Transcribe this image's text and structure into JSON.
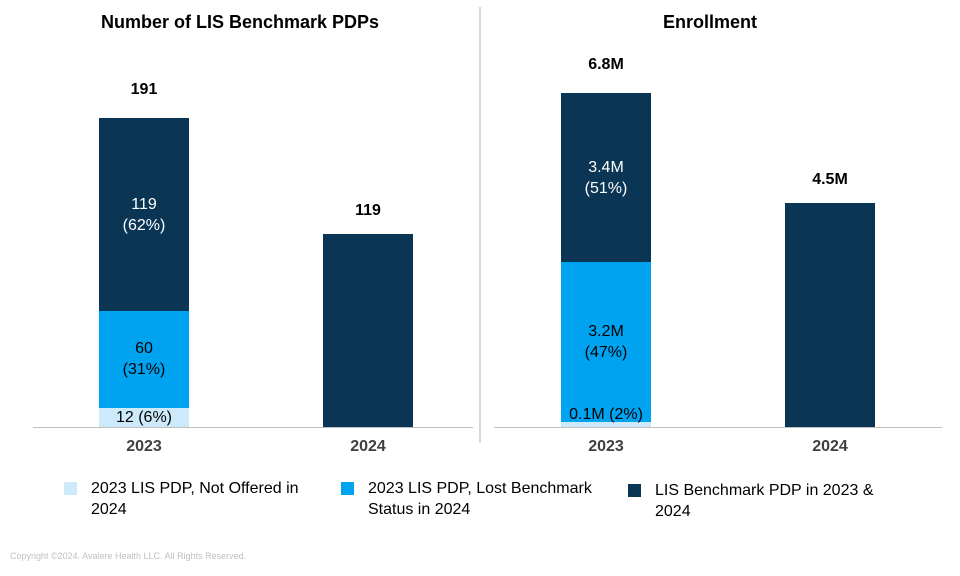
{
  "colors": {
    "not_offered": "#cdeafb",
    "lost_benchmark": "#00a3f0",
    "benchmark_both": "#0b3554"
  },
  "chart_data": [
    {
      "type": "bar",
      "stacked": true,
      "title": "Number of LIS Benchmark PDPs",
      "categories": [
        "2023",
        "2024"
      ],
      "series": [
        {
          "name": "2023 LIS PDP, Not Offered in 2024",
          "values": [
            12,
            0
          ],
          "labels": [
            "12 (6%)",
            ""
          ]
        },
        {
          "name": "2023 LIS PDP, Lost Benchmark Status in 2024",
          "values": [
            60,
            0
          ],
          "labels": [
            "60\n(31%)",
            ""
          ]
        },
        {
          "name": "LIS Benchmark PDP in 2023 & 2024",
          "values": [
            119,
            119
          ],
          "labels": [
            "119\n(62%)",
            ""
          ]
        }
      ],
      "totals": [
        "191",
        "119"
      ],
      "ylim": [
        0,
        220
      ],
      "grid": false,
      "legend": "bottom"
    },
    {
      "type": "bar",
      "stacked": true,
      "title": "Enrollment",
      "categories": [
        "2023",
        "2024"
      ],
      "series": [
        {
          "name": "2023 LIS PDP, Not Offered in 2024",
          "values": [
            0.1,
            0
          ],
          "labels": [
            "",
            ""
          ]
        },
        {
          "name": "2023 LIS PDP, Lost Benchmark Status in 2024",
          "values": [
            3.2,
            0
          ],
          "labels": [
            "3.2M\n(47%)",
            ""
          ]
        },
        {
          "name": "LIS Benchmark PDP in 2023 & 2024",
          "values": [
            3.4,
            4.5
          ],
          "labels": [
            "3.4M\n(51%)",
            ""
          ]
        }
      ],
      "extra_labels": [
        "0.1M (2%)"
      ],
      "totals": [
        "6.8M",
        "4.5M"
      ],
      "unit": "M",
      "ylim": [
        0,
        7.3
      ],
      "grid": false,
      "legend": "bottom"
    }
  ],
  "legend": [
    {
      "label": "2023 LIS PDP, Not Offered in 2024",
      "color_key": "not_offered"
    },
    {
      "label": "2023 LIS PDP, Lost Benchmark Status in 2024",
      "color_key": "lost_benchmark"
    },
    {
      "label": "LIS Benchmark PDP in 2023 & 2024",
      "color_key": "benchmark_both"
    }
  ],
  "copyright": "Copyright ©2024. Avalere Health LLC. All Rights Reserved."
}
